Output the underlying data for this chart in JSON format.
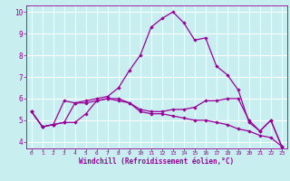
{
  "title": "",
  "xlabel": "Windchill (Refroidissement éolien,°C)",
  "ylabel": "",
  "xlim": [
    -0.5,
    23.5
  ],
  "ylim": [
    3.7,
    10.3
  ],
  "yticks": [
    4,
    5,
    6,
    7,
    8,
    9,
    10
  ],
  "xticks": [
    0,
    1,
    2,
    3,
    4,
    5,
    6,
    7,
    8,
    9,
    10,
    11,
    12,
    13,
    14,
    15,
    16,
    17,
    18,
    19,
    20,
    21,
    22,
    23
  ],
  "bg_color": "#c8eef0",
  "line_color": "#990099",
  "grid_color": "#ffffff",
  "lines": [
    {
      "x": [
        0,
        1,
        2,
        3,
        4,
        5,
        6,
        7,
        8,
        9,
        10,
        11,
        12,
        13,
        14,
        15,
        16,
        17,
        18,
        19,
        20,
        21,
        22,
        23
      ],
      "y": [
        5.4,
        4.7,
        4.8,
        4.9,
        5.8,
        5.8,
        5.9,
        6.0,
        6.0,
        5.8,
        5.4,
        5.3,
        5.3,
        5.2,
        5.1,
        5.0,
        5.0,
        4.9,
        4.8,
        4.6,
        4.5,
        4.3,
        4.2,
        3.8
      ]
    },
    {
      "x": [
        0,
        1,
        2,
        3,
        4,
        5,
        6,
        7,
        8,
        9,
        10,
        11,
        12,
        13,
        14,
        15,
        16,
        17,
        18,
        19,
        20,
        21,
        22,
        23
      ],
      "y": [
        5.4,
        4.7,
        4.8,
        4.9,
        4.9,
        5.3,
        5.9,
        6.0,
        5.9,
        5.8,
        5.5,
        5.4,
        5.4,
        5.5,
        5.5,
        5.6,
        5.9,
        5.9,
        6.0,
        6.0,
        5.0,
        4.5,
        5.0,
        3.8
      ]
    },
    {
      "x": [
        0,
        1,
        2,
        3,
        4,
        5,
        6,
        7,
        8,
        9,
        10,
        11,
        12,
        13,
        14,
        15,
        16,
        17,
        18,
        19,
        20,
        21,
        22,
        23
      ],
      "y": [
        5.4,
        4.7,
        4.8,
        5.9,
        5.8,
        5.9,
        6.0,
        6.1,
        6.5,
        7.3,
        8.0,
        9.3,
        9.7,
        10.0,
        9.5,
        8.7,
        8.8,
        7.5,
        7.1,
        6.4,
        4.9,
        4.5,
        5.0,
        3.8
      ]
    }
  ]
}
